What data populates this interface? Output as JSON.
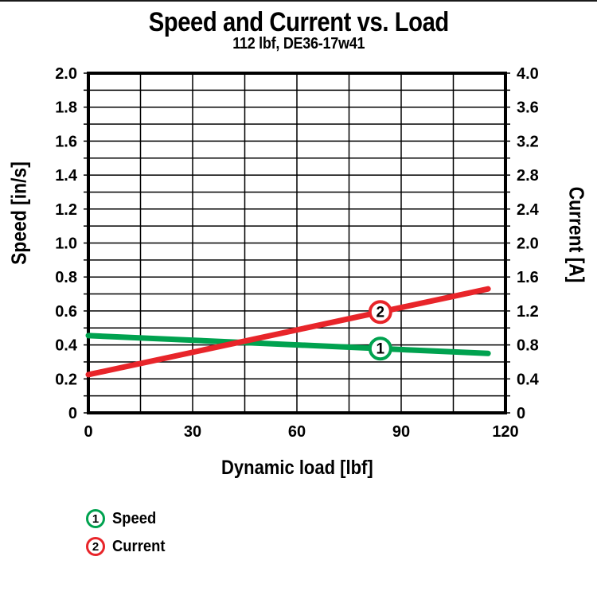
{
  "title": "Speed and Current vs. Load",
  "subtitle": "112 lbf, DE36-17w41",
  "chart_data": {
    "type": "line",
    "title": "Speed and Current vs. Load",
    "subtitle": "112 lbf, DE36-17w41",
    "xlabel": "Dynamic load [lbf]",
    "ylabel_left": "Speed [in/s]",
    "ylabel_right": "Current [A]",
    "xlim": [
      0,
      120
    ],
    "ylim_left": [
      0,
      2.0
    ],
    "ylim_right": [
      0,
      4.0
    ],
    "grid": true,
    "x_grid_step": 15,
    "y_grid_step_left": 0.1,
    "frame_color": "#000000",
    "grid_color": "#000000",
    "x_ticks": [
      {
        "v": 0,
        "label": "0"
      },
      {
        "v": 30,
        "label": "30"
      },
      {
        "v": 60,
        "label": "60"
      },
      {
        "v": 90,
        "label": "90"
      },
      {
        "v": 120,
        "label": "120"
      }
    ],
    "y_left_ticks": [
      {
        "v": 0,
        "label": "0"
      },
      {
        "v": 0.2,
        "label": "0.2"
      },
      {
        "v": 0.4,
        "label": "0.4"
      },
      {
        "v": 0.6,
        "label": "0.6"
      },
      {
        "v": 0.8,
        "label": "0.8"
      },
      {
        "v": 1.0,
        "label": "1.0"
      },
      {
        "v": 1.2,
        "label": "1.2"
      },
      {
        "v": 1.4,
        "label": "1.4"
      },
      {
        "v": 1.6,
        "label": "1.6"
      },
      {
        "v": 1.8,
        "label": "1.8"
      },
      {
        "v": 2.0,
        "label": "2.0"
      }
    ],
    "y_right_ticks": [
      {
        "v": 0,
        "label": "0"
      },
      {
        "v": 0.4,
        "label": "0.4"
      },
      {
        "v": 0.8,
        "label": "0.8"
      },
      {
        "v": 1.2,
        "label": "1.2"
      },
      {
        "v": 1.6,
        "label": "1.6"
      },
      {
        "v": 2.0,
        "label": "2.0"
      },
      {
        "v": 2.4,
        "label": "2.4"
      },
      {
        "v": 2.8,
        "label": "2.8"
      },
      {
        "v": 3.2,
        "label": "3.2"
      },
      {
        "v": 3.6,
        "label": "3.6"
      },
      {
        "v": 4.0,
        "label": "4.0"
      }
    ],
    "series": [
      {
        "id": "1",
        "name": "Speed",
        "axis": "left",
        "color": "#00a24f",
        "x": [
          0,
          115
        ],
        "y": [
          0.455,
          0.35
        ],
        "marker_x": 84
      },
      {
        "id": "2",
        "name": "Current",
        "axis": "right",
        "color": "#e8252a",
        "x": [
          0,
          115
        ],
        "y": [
          0.45,
          1.46
        ],
        "marker_x": 84
      }
    ]
  },
  "legend": {
    "items": [
      {
        "number": "1",
        "label": "Speed",
        "color": "#00a24f"
      },
      {
        "number": "2",
        "label": "Current",
        "color": "#e8252a"
      }
    ]
  }
}
